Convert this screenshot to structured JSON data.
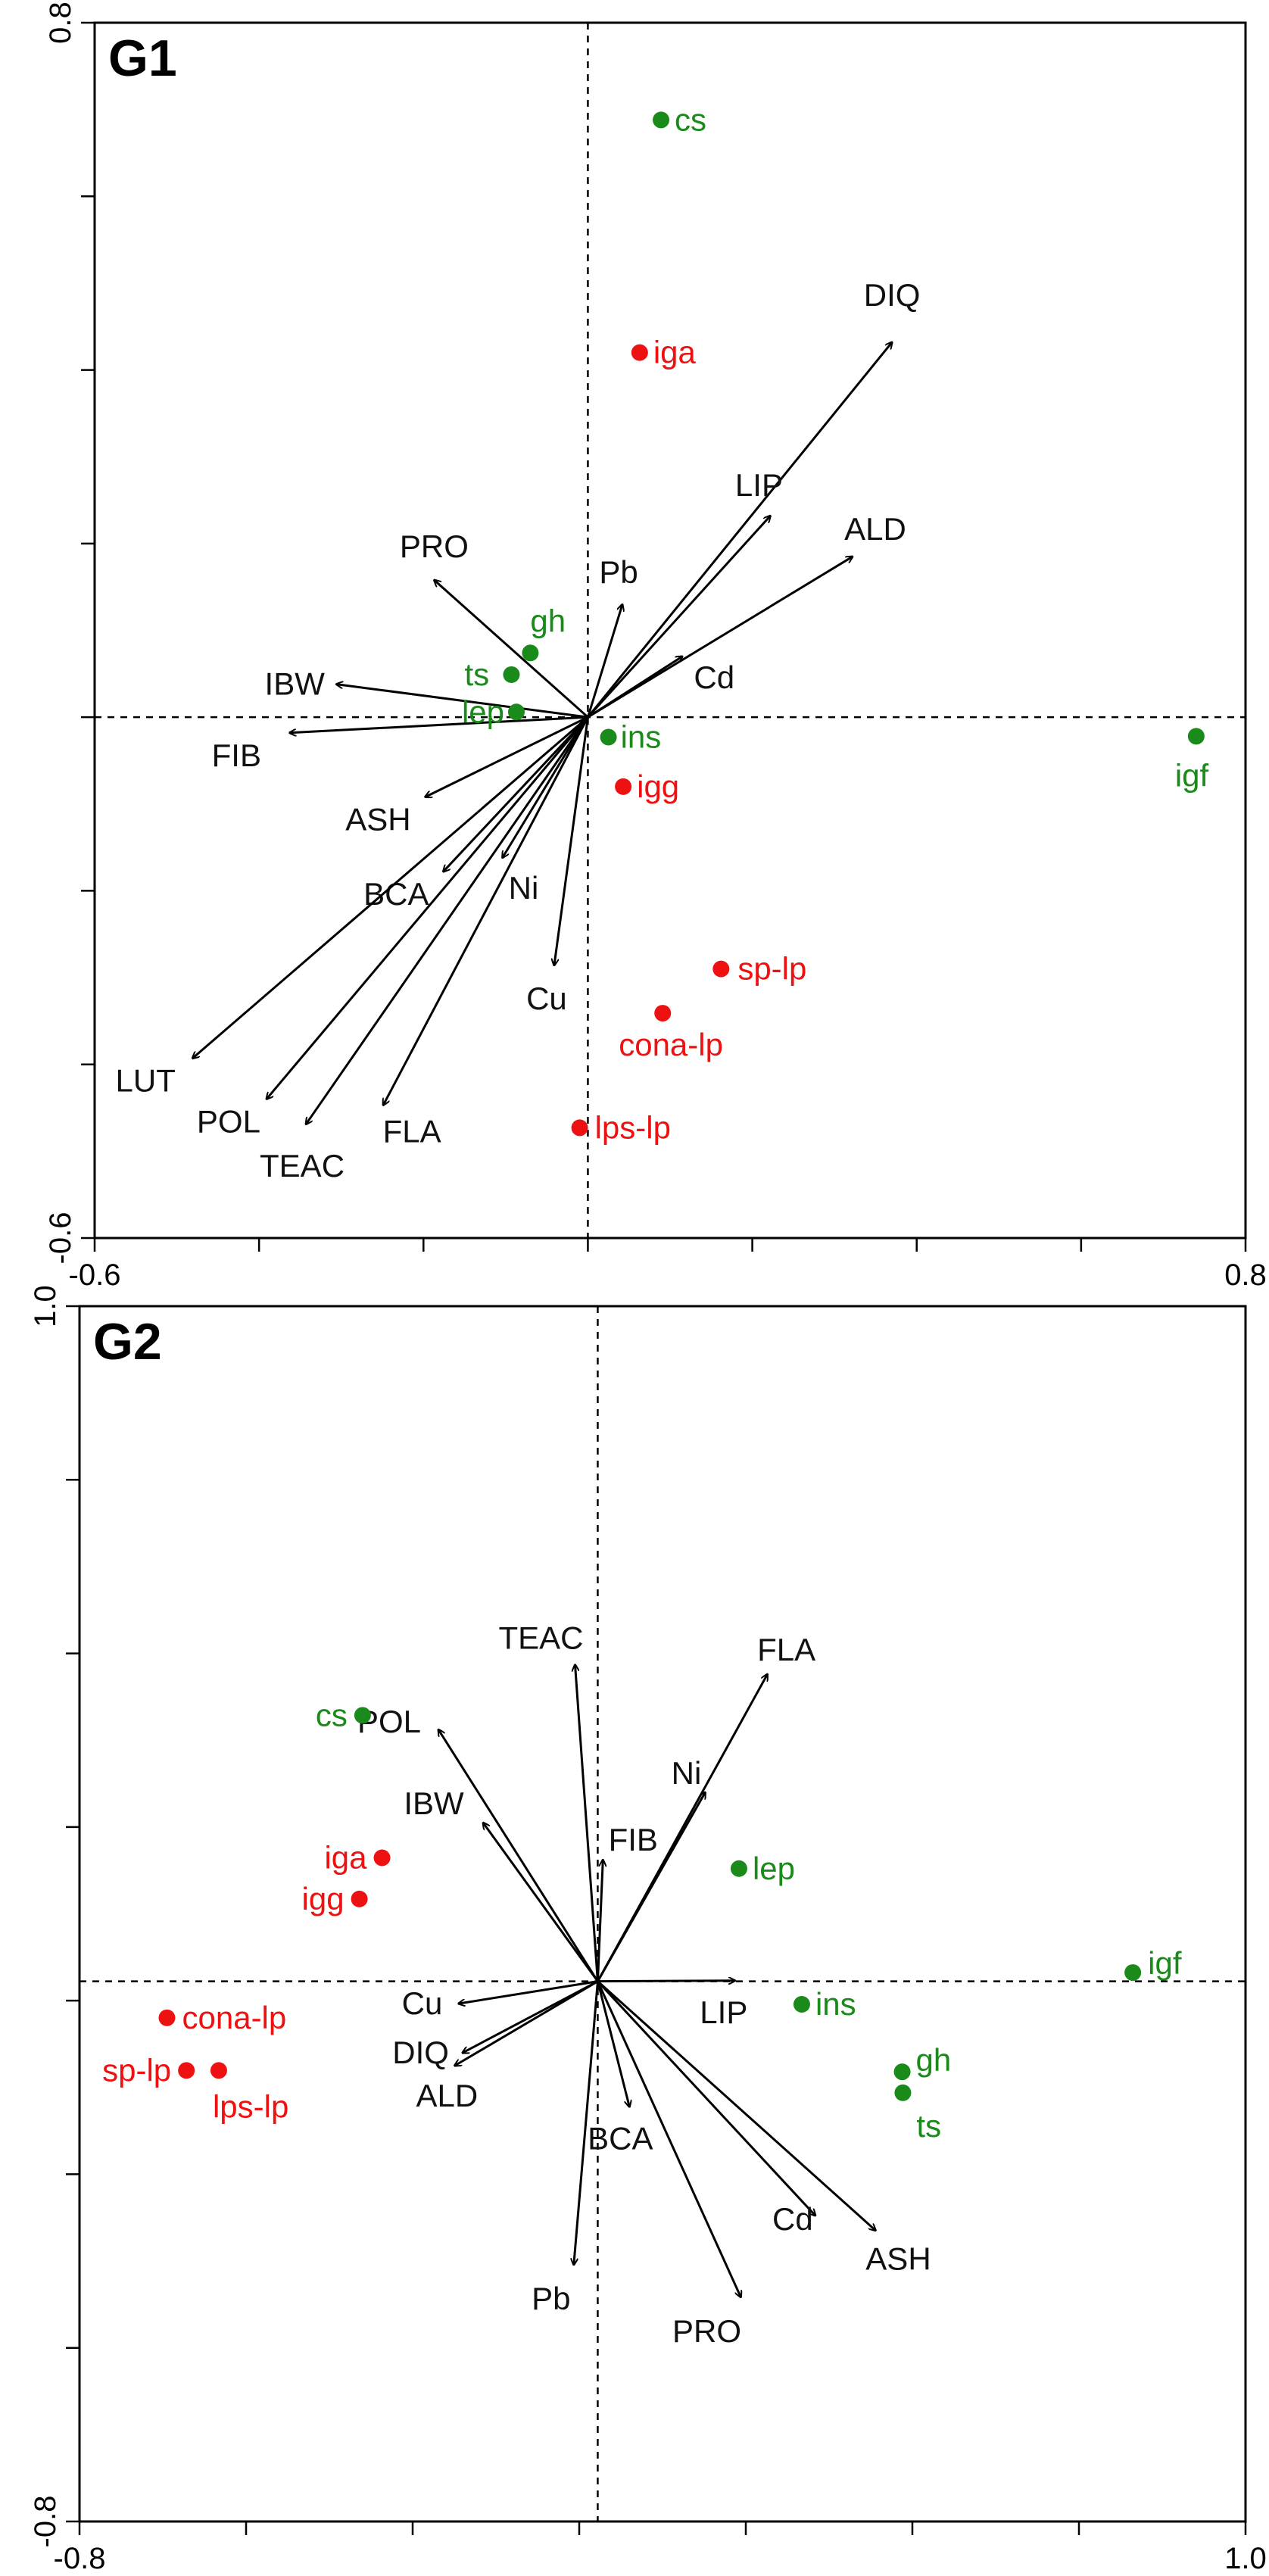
{
  "colors": {
    "background": "#ffffff",
    "frame": "#000000",
    "arrow": "#000000",
    "variable_label": "#111111",
    "red_group": "#ee1111",
    "green_group": "#1a8a1a"
  },
  "chart_data": [
    {
      "type": "scatter",
      "panel_label": "G1",
      "title": "G1",
      "xlabel": "",
      "ylabel": "",
      "xlim": [
        -0.6,
        0.8
      ],
      "ylim": [
        -0.6,
        0.8
      ],
      "x_tick_labels": [
        "-0.6",
        "0.8"
      ],
      "y_tick_labels": [
        "-0.6",
        "0.8"
      ],
      "minor_tick_count": 8,
      "reference_lines": "dashed lines through x=0 and y=0",
      "vectors": [
        {
          "name": "DIQ",
          "x": 0.37,
          "y": 0.432,
          "label": "DIQ"
        },
        {
          "name": "LIP",
          "x": 0.222,
          "y": 0.232,
          "label": "LIP"
        },
        {
          "name": "ALD",
          "x": 0.322,
          "y": 0.185,
          "label": "ALD"
        },
        {
          "name": "Pb",
          "x": 0.042,
          "y": 0.13,
          "label": "Pb"
        },
        {
          "name": "Cd",
          "x": 0.115,
          "y": 0.07,
          "label": "Cd"
        },
        {
          "name": "PRO",
          "x": -0.187,
          "y": 0.158,
          "label": "PRO"
        },
        {
          "name": "IBW",
          "x": -0.306,
          "y": 0.038,
          "label": "IBW"
        },
        {
          "name": "FIB",
          "x": -0.363,
          "y": -0.018,
          "label": "FIB"
        },
        {
          "name": "ASH",
          "x": -0.198,
          "y": -0.092,
          "label": "ASH"
        },
        {
          "name": "BCA",
          "x": -0.176,
          "y": -0.178,
          "label": "BCA"
        },
        {
          "name": "Ni",
          "x": -0.104,
          "y": -0.162,
          "label": "Ni"
        },
        {
          "name": "Cu",
          "x": -0.041,
          "y": -0.286,
          "label": "Cu"
        },
        {
          "name": "LUT",
          "x": -0.481,
          "y": -0.393,
          "label": "LUT"
        },
        {
          "name": "POL",
          "x": -0.391,
          "y": -0.44,
          "label": "POL"
        },
        {
          "name": "TEAC",
          "x": -0.343,
          "y": -0.469,
          "label": "TEAC"
        },
        {
          "name": "FLA",
          "x": -0.249,
          "y": -0.447,
          "label": "FLA"
        }
      ],
      "points": [
        {
          "name": "cs",
          "x": 0.089,
          "y": 0.688,
          "group": "green"
        },
        {
          "name": "iga",
          "x": 0.063,
          "y": 0.42,
          "group": "red"
        },
        {
          "name": "gh",
          "x": -0.07,
          "y": 0.074,
          "group": "green"
        },
        {
          "name": "ts",
          "x": -0.093,
          "y": 0.049,
          "group": "green"
        },
        {
          "name": "lep",
          "x": -0.087,
          "y": 0.006,
          "group": "green"
        },
        {
          "name": "ins",
          "x": 0.025,
          "y": -0.023,
          "group": "green"
        },
        {
          "name": "igg",
          "x": 0.043,
          "y": -0.08,
          "group": "red"
        },
        {
          "name": "igf",
          "x": 0.74,
          "y": -0.022,
          "group": "green"
        },
        {
          "name": "sp-lp",
          "x": 0.162,
          "y": -0.29,
          "group": "red"
        },
        {
          "name": "cona-lp",
          "x": 0.091,
          "y": -0.341,
          "group": "red"
        },
        {
          "name": "lps-lp",
          "x": -0.01,
          "y": -0.473,
          "group": "red"
        }
      ]
    },
    {
      "type": "scatter",
      "panel_label": "G2",
      "title": "G2",
      "xlabel": "",
      "ylabel": "",
      "xlim": [
        -0.8,
        1.0
      ],
      "ylim": [
        -0.8,
        1.0
      ],
      "x_tick_labels": [
        "-0.8",
        "1.0"
      ],
      "y_tick_labels": [
        "-0.8",
        "1.0"
      ],
      "minor_tick_count": 8,
      "reference_lines": "dashed lines through x=0 and y=0",
      "vectors": [
        {
          "name": "TEAC",
          "x": -0.035,
          "y": 0.469,
          "label": "TEAC"
        },
        {
          "name": "FLA",
          "x": 0.262,
          "y": 0.455,
          "label": "FLA"
        },
        {
          "name": "Ni",
          "x": 0.166,
          "y": 0.28,
          "label": "Ni"
        },
        {
          "name": "FIB",
          "x": 0.008,
          "y": 0.18,
          "label": "FIB"
        },
        {
          "name": "POL",
          "x": -0.246,
          "y": 0.373,
          "label": "POL"
        },
        {
          "name": "IBW",
          "x": -0.177,
          "y": 0.235,
          "label": "IBW"
        },
        {
          "name": "LIP",
          "x": 0.212,
          "y": 0.001,
          "label": "LIP"
        },
        {
          "name": "Cu",
          "x": -0.215,
          "y": -0.033,
          "label": "Cu"
        },
        {
          "name": "DIQ",
          "x": -0.209,
          "y": -0.106,
          "label": "DIQ"
        },
        {
          "name": "ALD",
          "x": -0.221,
          "y": -0.125,
          "label": "ALD"
        },
        {
          "name": "BCA",
          "x": 0.049,
          "y": -0.186,
          "label": "BCA"
        },
        {
          "name": "Pb",
          "x": -0.037,
          "y": -0.42,
          "label": "Pb"
        },
        {
          "name": "PRO",
          "x": 0.221,
          "y": -0.468,
          "label": "PRO"
        },
        {
          "name": "Cd",
          "x": 0.336,
          "y": -0.347,
          "label": "Cd"
        },
        {
          "name": "ASH",
          "x": 0.429,
          "y": -0.369,
          "label": "ASH"
        }
      ],
      "points": [
        {
          "name": "cs",
          "x": -0.363,
          "y": 0.394,
          "group": "green"
        },
        {
          "name": "iga",
          "x": -0.333,
          "y": 0.183,
          "group": "red"
        },
        {
          "name": "igg",
          "x": -0.368,
          "y": 0.122,
          "group": "red"
        },
        {
          "name": "lep",
          "x": 0.218,
          "y": 0.167,
          "group": "green"
        },
        {
          "name": "igf",
          "x": 0.826,
          "y": 0.013,
          "group": "green"
        },
        {
          "name": "ins",
          "x": 0.315,
          "y": -0.034,
          "group": "green"
        },
        {
          "name": "gh",
          "x": 0.47,
          "y": -0.134,
          "group": "green"
        },
        {
          "name": "ts",
          "x": 0.471,
          "y": -0.165,
          "group": "green"
        },
        {
          "name": "cona-lp",
          "x": -0.665,
          "y": -0.054,
          "group": "red"
        },
        {
          "name": "sp-lp",
          "x": -0.635,
          "y": -0.132,
          "group": "red"
        },
        {
          "name": "lps-lp",
          "x": -0.585,
          "y": -0.132,
          "group": "red"
        }
      ]
    }
  ]
}
